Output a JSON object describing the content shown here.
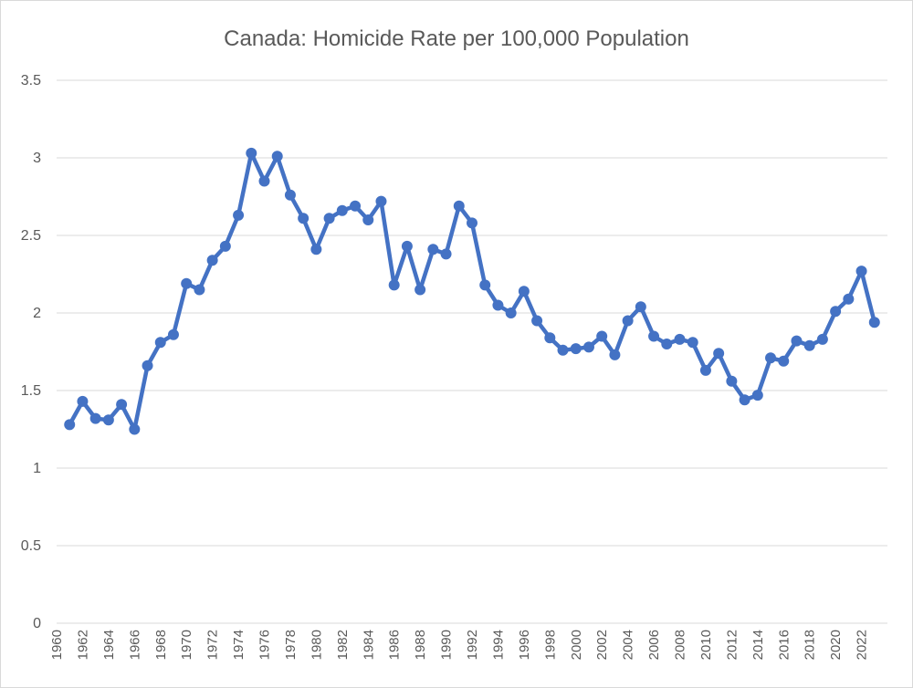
{
  "chart_data": {
    "type": "line",
    "title": "Canada: Homicide Rate per 100,000 Population",
    "xlabel": "",
    "ylabel": "",
    "ylim": [
      0,
      3.5
    ],
    "yticks": [
      "0",
      "0.5",
      "1",
      "1.5",
      "2",
      "2.5",
      "3",
      "3.5"
    ],
    "grid": true,
    "legend": "none",
    "color": "#4472c4",
    "x_tick_labels": [
      "1960",
      "1962",
      "1964",
      "1966",
      "1968",
      "1970",
      "1972",
      "1974",
      "1976",
      "1978",
      "1980",
      "1982",
      "1984",
      "1986",
      "1988",
      "1990",
      "1992",
      "1994",
      "1996",
      "1998",
      "2000",
      "2002",
      "2004",
      "2006",
      "2008",
      "2010",
      "2012",
      "2014",
      "2016",
      "2018",
      "2020",
      "2022"
    ],
    "x": [
      1961,
      1962,
      1963,
      1964,
      1965,
      1966,
      1967,
      1968,
      1969,
      1970,
      1971,
      1972,
      1973,
      1974,
      1975,
      1976,
      1977,
      1978,
      1979,
      1980,
      1981,
      1982,
      1983,
      1984,
      1985,
      1986,
      1987,
      1988,
      1989,
      1990,
      1991,
      1992,
      1993,
      1994,
      1995,
      1996,
      1997,
      1998,
      1999,
      2000,
      2001,
      2002,
      2003,
      2004,
      2005,
      2006,
      2007,
      2008,
      2009,
      2010,
      2011,
      2012,
      2013,
      2014,
      2015,
      2016,
      2017,
      2018,
      2019,
      2020,
      2021,
      2022,
      2023
    ],
    "series": [
      {
        "name": "Homicide rate",
        "values": [
          1.28,
          1.43,
          1.32,
          1.31,
          1.41,
          1.25,
          1.66,
          1.81,
          1.86,
          2.19,
          2.15,
          2.34,
          2.43,
          2.63,
          3.03,
          2.85,
          3.01,
          2.76,
          2.61,
          2.41,
          2.61,
          2.66,
          2.69,
          2.6,
          2.72,
          2.18,
          2.43,
          2.15,
          2.41,
          2.38,
          2.69,
          2.58,
          2.18,
          2.05,
          2.0,
          2.14,
          1.95,
          1.84,
          1.76,
          1.77,
          1.78,
          1.85,
          1.73,
          1.95,
          2.04,
          1.85,
          1.8,
          1.83,
          1.81,
          1.63,
          1.74,
          1.56,
          1.44,
          1.47,
          1.71,
          1.69,
          1.82,
          1.79,
          1.83,
          2.01,
          2.09,
          2.27,
          1.94
        ]
      }
    ]
  }
}
